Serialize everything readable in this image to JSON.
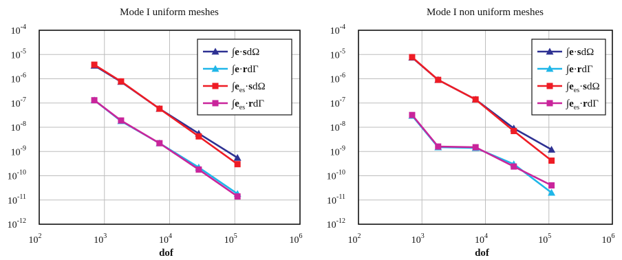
{
  "figure": {
    "x_label": "dof"
  },
  "chart_data": [
    {
      "type": "line",
      "title": "Mode I uniform meshes",
      "xlabel": "dof",
      "ylabel": "",
      "x_scale": "log",
      "y_scale": "log",
      "xlim": [
        100,
        1000000
      ],
      "ylim": [
        1e-12,
        0.0001
      ],
      "x_tick_exponents": [
        2,
        3,
        4,
        5,
        6
      ],
      "y_tick_exponents": [
        -4,
        -5,
        -6,
        -7,
        -8,
        -9,
        -10,
        -11,
        -12
      ],
      "grid": true,
      "legend_position": "top-right",
      "series": [
        {
          "name": "∫e·sdΩ",
          "color": "#2e3192",
          "marker": "triangle",
          "x": [
            700,
            1800,
            7000,
            28000,
            110000
          ],
          "y": [
            3.5e-06,
            7.5e-07,
            5.8e-08,
            5.5e-09,
            5.5e-10
          ]
        },
        {
          "name": "∫e·rdΓ",
          "color": "#1fb6e8",
          "marker": "triangle",
          "x": [
            700,
            1800,
            7000,
            28000,
            110000
          ],
          "y": [
            1.3e-07,
            1.8e-08,
            2.2e-09,
            2.2e-10,
            1.8e-11
          ]
        },
        {
          "name": "∫e_es·sdΩ",
          "color": "#ee1c25",
          "marker": "square",
          "x": [
            700,
            1800,
            7000,
            28000,
            110000
          ],
          "y": [
            3.8e-06,
            7.8e-07,
            5.8e-08,
            4.2e-09,
            3e-10
          ]
        },
        {
          "name": "∫e_es·rdΓ",
          "color": "#c9259b",
          "marker": "square",
          "x": [
            700,
            1800,
            7000,
            28000,
            110000
          ],
          "y": [
            1.3e-07,
            1.9e-08,
            2.2e-09,
            1.8e-10,
            1.4e-11
          ]
        }
      ]
    },
    {
      "type": "line",
      "title": "Mode I non uniform meshes",
      "xlabel": "dof",
      "ylabel": "",
      "x_scale": "log",
      "y_scale": "log",
      "xlim": [
        100,
        1000000
      ],
      "ylim": [
        1e-12,
        0.0001
      ],
      "x_tick_exponents": [
        2,
        3,
        4,
        5,
        6
      ],
      "y_tick_exponents": [
        -4,
        -5,
        -6,
        -7,
        -8,
        -9,
        -10,
        -11,
        -12
      ],
      "grid": true,
      "legend_position": "top-right",
      "series": [
        {
          "name": "∫e·sdΩ",
          "color": "#2e3192",
          "marker": "triangle",
          "x": [
            700,
            1800,
            7000,
            28000,
            110000
          ],
          "y": [
            7.5e-06,
            9e-07,
            1.4e-07,
            9e-09,
            1.2e-09
          ]
        },
        {
          "name": "∫e·rdΓ",
          "color": "#1fb6e8",
          "marker": "triangle",
          "x": [
            700,
            1800,
            7000,
            28000,
            110000
          ],
          "y": [
            3e-08,
            1.5e-09,
            1.4e-09,
            3e-10,
            2e-11
          ]
        },
        {
          "name": "∫e_es·sdΩ",
          "color": "#ee1c25",
          "marker": "square",
          "x": [
            700,
            1800,
            7000,
            28000,
            110000
          ],
          "y": [
            7.8e-06,
            9e-07,
            1.4e-07,
            7e-09,
            4.2e-10
          ]
        },
        {
          "name": "∫e_es·rdΓ",
          "color": "#c9259b",
          "marker": "square",
          "x": [
            700,
            1800,
            7000,
            28000,
            110000
          ],
          "y": [
            3.2e-08,
            1.6e-09,
            1.5e-09,
            2.4e-10,
            4e-11
          ]
        }
      ]
    }
  ]
}
